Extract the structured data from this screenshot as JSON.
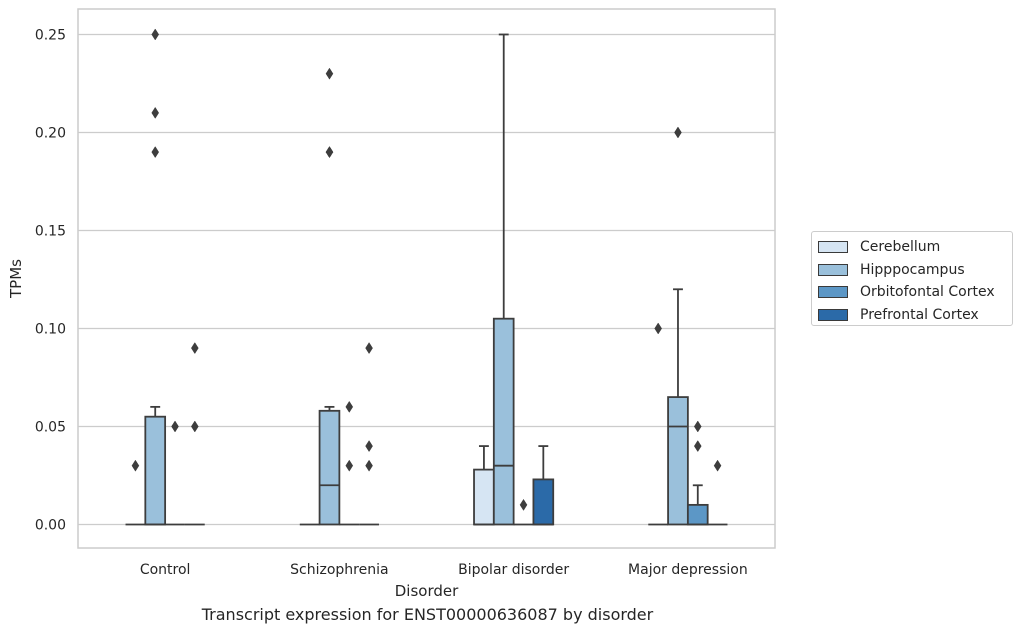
{
  "chart_data": {
    "type": "box",
    "xlabel": "Disorder",
    "ylabel": "TPMs",
    "caption": "Transcript expression for ENST00000636087 by disorder",
    "categories": [
      "Control",
      "Schizophrenia",
      "Bipolar disorder",
      "Major depression"
    ],
    "ylim": [
      -0.012,
      0.263
    ],
    "yticks": [
      0.0,
      0.05,
      0.1,
      0.15,
      0.2,
      0.25
    ],
    "yticklabels": [
      "0.00",
      "0.05",
      "0.10",
      "0.15",
      "0.20",
      "0.25"
    ],
    "grid": "horizontal",
    "legend_position": "right",
    "series": [
      {
        "name": "Cerebellum",
        "color": "#d6e5f3",
        "boxes": [
          {
            "q1": 0,
            "median": 0,
            "q3": 0,
            "whislo": 0,
            "whishi": 0,
            "fliers": [
              0.03
            ]
          },
          {
            "q1": 0,
            "median": 0,
            "q3": 0,
            "whislo": 0,
            "whishi": 0,
            "fliers": []
          },
          {
            "q1": 0,
            "median": 0,
            "q3": 0.028,
            "whislo": 0,
            "whishi": 0.04,
            "fliers": []
          },
          {
            "q1": 0,
            "median": 0,
            "q3": 0,
            "whislo": 0,
            "whishi": 0,
            "fliers": [
              0.1
            ]
          }
        ]
      },
      {
        "name": "Hipppocampus",
        "color": "#9ac0db",
        "boxes": [
          {
            "q1": 0,
            "median": 0,
            "q3": 0.055,
            "whislo": 0,
            "whishi": 0.06,
            "fliers": [
              0.19,
              0.21,
              0.25
            ]
          },
          {
            "q1": 0,
            "median": 0.02,
            "q3": 0.058,
            "whislo": 0,
            "whishi": 0.06,
            "fliers": [
              0.19,
              0.19,
              0.23
            ]
          },
          {
            "q1": 0,
            "median": 0.03,
            "q3": 0.105,
            "whislo": 0,
            "whishi": 0.25,
            "fliers": []
          },
          {
            "q1": 0,
            "median": 0.05,
            "q3": 0.065,
            "whislo": 0,
            "whishi": 0.12,
            "fliers": [
              0.2
            ]
          }
        ]
      },
      {
        "name": "Orbitofontal Cortex",
        "color": "#5c97c6",
        "boxes": [
          {
            "q1": 0,
            "median": 0,
            "q3": 0,
            "whislo": 0,
            "whishi": 0,
            "fliers": [
              0.05
            ]
          },
          {
            "q1": 0,
            "median": 0,
            "q3": 0,
            "whislo": 0,
            "whishi": 0,
            "fliers": [
              0.03,
              0.06
            ]
          },
          {
            "q1": 0,
            "median": 0,
            "q3": 0,
            "whislo": 0,
            "whishi": 0,
            "fliers": [
              0.01
            ]
          },
          {
            "q1": 0,
            "median": 0,
            "q3": 0.01,
            "whislo": 0,
            "whishi": 0.02,
            "fliers": [
              0.04,
              0.05
            ]
          }
        ]
      },
      {
        "name": "Prefrontal Cortex",
        "color": "#2b6aa8",
        "boxes": [
          {
            "q1": 0,
            "median": 0,
            "q3": 0,
            "whislo": 0,
            "whishi": 0,
            "fliers": [
              0.05,
              0.09
            ]
          },
          {
            "q1": 0,
            "median": 0,
            "q3": 0,
            "whislo": 0,
            "whishi": 0,
            "fliers": [
              0.03,
              0.04,
              0.09
            ]
          },
          {
            "q1": 0,
            "median": 0,
            "q3": 0.023,
            "whislo": 0,
            "whishi": 0.04,
            "fliers": []
          },
          {
            "q1": 0,
            "median": 0,
            "q3": 0,
            "whislo": 0,
            "whishi": 0,
            "fliers": [
              0.03
            ]
          }
        ]
      }
    ]
  }
}
